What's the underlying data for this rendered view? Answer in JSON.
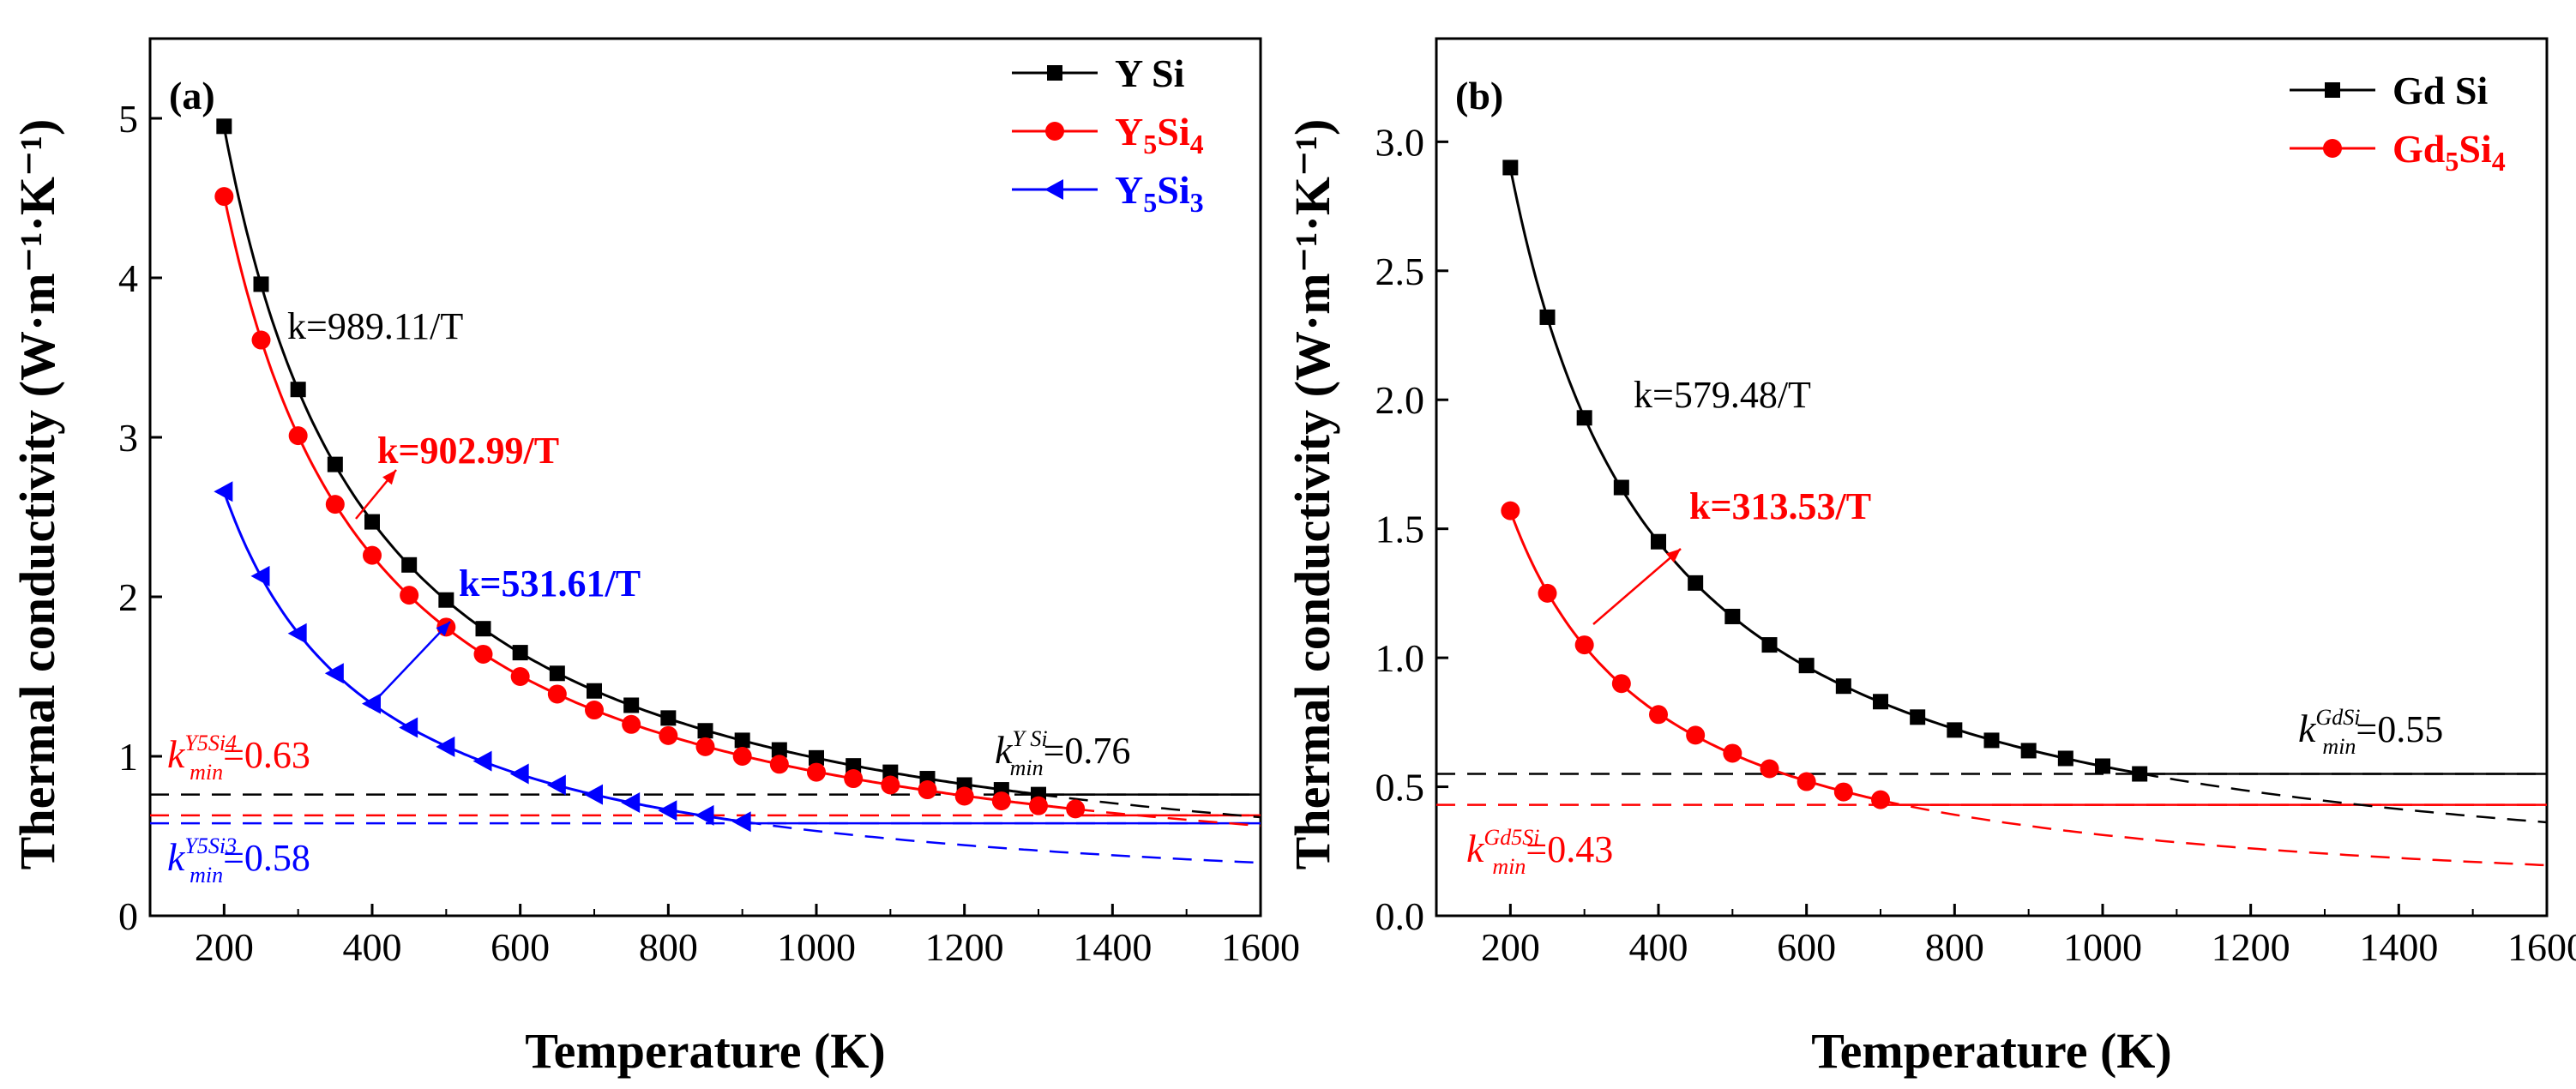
{
  "chart_data": [
    {
      "type": "line",
      "panel_label": "(a)",
      "xlabel": "Temperature (K)",
      "ylabel": "Thermal conductivity (W·m⁻¹·K⁻¹)",
      "xlim": [
        100,
        1600
      ],
      "ylim": [
        0,
        5.5
      ],
      "xticks": [
        200,
        400,
        600,
        800,
        1000,
        1200,
        1400,
        1600
      ],
      "yticks": [
        0,
        1,
        2,
        3,
        4,
        5
      ],
      "legend_position": "top-right",
      "series": [
        {
          "name": "Y Si",
          "legend_parts": [
            {
              "t": "Y Si",
              "sub": false
            }
          ],
          "color": "#000000",
          "marker": "square",
          "coef": 989.11,
          "x": [
            200,
            250,
            300,
            350,
            400,
            450,
            500,
            550,
            600,
            650,
            700,
            750,
            800,
            850,
            900,
            950,
            1000,
            1050,
            1100,
            1150,
            1200,
            1250,
            1300
          ],
          "y": [
            4.95,
            3.96,
            3.3,
            2.83,
            2.47,
            2.2,
            1.98,
            1.8,
            1.65,
            1.52,
            1.41,
            1.32,
            1.24,
            1.16,
            1.1,
            1.04,
            0.99,
            0.94,
            0.9,
            0.86,
            0.82,
            0.79,
            0.76
          ]
        },
        {
          "name": "Y5Si4",
          "legend_parts": [
            {
              "t": "Y",
              "sub": false
            },
            {
              "t": "5",
              "sub": true
            },
            {
              "t": "Si",
              "sub": false
            },
            {
              "t": "4",
              "sub": true
            }
          ],
          "color": "#ff0000",
          "marker": "circle",
          "coef": 902.99,
          "x": [
            200,
            250,
            300,
            350,
            400,
            450,
            500,
            550,
            600,
            650,
            700,
            750,
            800,
            850,
            900,
            950,
            1000,
            1050,
            1100,
            1150,
            1200,
            1250,
            1300,
            1350
          ],
          "y": [
            4.51,
            3.61,
            3.01,
            2.58,
            2.26,
            2.01,
            1.81,
            1.64,
            1.5,
            1.39,
            1.29,
            1.2,
            1.13,
            1.06,
            1.0,
            0.95,
            0.9,
            0.86,
            0.82,
            0.79,
            0.75,
            0.72,
            0.69,
            0.67
          ]
        },
        {
          "name": "Y5Si3",
          "legend_parts": [
            {
              "t": "Y",
              "sub": false
            },
            {
              "t": "5",
              "sub": true
            },
            {
              "t": "Si",
              "sub": false
            },
            {
              "t": "3",
              "sub": true
            }
          ],
          "color": "#0000ff",
          "marker": "triangle-left",
          "coef": 531.61,
          "x": [
            200,
            250,
            300,
            350,
            400,
            450,
            500,
            550,
            600,
            650,
            700,
            750,
            800,
            850,
            900
          ],
          "y": [
            2.66,
            2.13,
            1.77,
            1.52,
            1.33,
            1.18,
            1.06,
            0.97,
            0.89,
            0.82,
            0.76,
            0.71,
            0.66,
            0.63,
            0.59
          ]
        }
      ],
      "kmin_lines": [
        {
          "value": 0.76,
          "color": "#000000",
          "from_T": 1300
        },
        {
          "value": 0.63,
          "color": "#ff0000",
          "from_T": 1350
        },
        {
          "value": 0.58,
          "color": "#0000ff",
          "from_T": 900
        }
      ],
      "annotations": [
        {
          "text": "k=989.11/T",
          "color": "#000000",
          "bold": false
        },
        {
          "text": "k=902.99/T",
          "color": "#ff0000",
          "bold": true
        },
        {
          "text": "k=531.61/T",
          "color": "#0000ff",
          "bold": true
        },
        {
          "sup": "Y Si",
          "rest": "=0.76",
          "color": "#000000"
        },
        {
          "sup": "Y5Si4",
          "rest": "=0.63",
          "color": "#ff0000"
        },
        {
          "sup": "Y5Si3",
          "rest": "=0.58",
          "color": "#0000ff"
        }
      ]
    },
    {
      "type": "line",
      "panel_label": "(b)",
      "xlabel": "Temperature (K)",
      "ylabel": "Thermal conductivity (W·m⁻¹·K⁻¹)",
      "xlim": [
        100,
        1600
      ],
      "ylim": [
        0,
        3.4
      ],
      "xticks": [
        200,
        400,
        600,
        800,
        1000,
        1200,
        1400,
        1600
      ],
      "yticks": [
        0.0,
        0.5,
        1.0,
        1.5,
        2.0,
        2.5,
        3.0
      ],
      "legend_position": "top-right",
      "series": [
        {
          "name": "Gd Si",
          "legend_parts": [
            {
              "t": "Gd Si",
              "sub": false
            }
          ],
          "color": "#000000",
          "marker": "square",
          "coef": 579.48,
          "x": [
            200,
            250,
            300,
            350,
            400,
            450,
            500,
            550,
            600,
            650,
            700,
            750,
            800,
            850,
            900,
            950,
            1000,
            1050
          ],
          "y": [
            2.9,
            2.32,
            1.93,
            1.66,
            1.45,
            1.29,
            1.16,
            1.05,
            0.97,
            0.89,
            0.83,
            0.77,
            0.72,
            0.68,
            0.64,
            0.61,
            0.58,
            0.55
          ]
        },
        {
          "name": "Gd5Si4",
          "legend_parts": [
            {
              "t": "Gd",
              "sub": false
            },
            {
              "t": "5",
              "sub": true
            },
            {
              "t": "Si",
              "sub": false
            },
            {
              "t": "4",
              "sub": true
            }
          ],
          "color": "#ff0000",
          "marker": "circle",
          "coef": 313.53,
          "x": [
            200,
            250,
            300,
            350,
            400,
            450,
            500,
            550,
            600,
            650,
            700
          ],
          "y": [
            1.57,
            1.25,
            1.05,
            0.9,
            0.78,
            0.7,
            0.63,
            0.57,
            0.52,
            0.48,
            0.45
          ]
        }
      ],
      "kmin_lines": [
        {
          "value": 0.55,
          "color": "#000000",
          "from_T": 1050
        },
        {
          "value": 0.43,
          "color": "#ff0000",
          "from_T": 700
        }
      ],
      "annotations": [
        {
          "text": "k=579.48/T",
          "color": "#000000",
          "bold": false
        },
        {
          "text": "k=313.53/T",
          "color": "#ff0000",
          "bold": true
        },
        {
          "sup": "GdSi",
          "rest": "=0.55",
          "color": "#000000"
        },
        {
          "sup": "Gd5Si",
          "rest": "=0.43",
          "color": "#ff0000"
        }
      ]
    }
  ]
}
